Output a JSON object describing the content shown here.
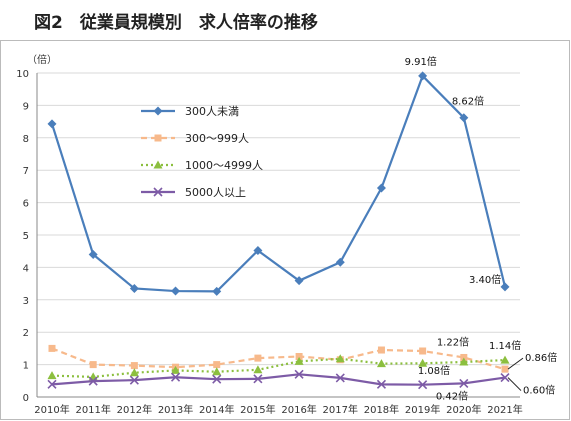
{
  "title": "図2　従業員規模別　求人倍率の推移",
  "chart_data": {
    "type": "line",
    "title": "図2　従業員規模別　求人倍率の推移",
    "y_unit_label": "（倍）",
    "ylim": [
      0,
      10
    ],
    "yticks": [
      0,
      1,
      2,
      3,
      4,
      5,
      6,
      7,
      8,
      9,
      10
    ],
    "grid": true,
    "legend_position": "top-left",
    "categories": [
      "2010年",
      "2011年",
      "2012年",
      "2013年",
      "2014年",
      "2015年",
      "2016年",
      "2017年",
      "2018年",
      "2019年",
      "2020年",
      "2021年"
    ],
    "series": [
      {
        "name": "300人未満",
        "color": "#4a7ebb",
        "marker": "diamond",
        "dash": "solid",
        "values": [
          8.43,
          4.4,
          3.35,
          3.27,
          3.26,
          4.52,
          3.59,
          4.16,
          6.45,
          9.91,
          8.62,
          3.4
        ]
      },
      {
        "name": "300～999人",
        "color": "#f7b98b",
        "marker": "square",
        "dash": "dashed",
        "values": [
          1.5,
          1.0,
          0.97,
          0.92,
          1.0,
          1.2,
          1.25,
          1.15,
          1.45,
          1.42,
          1.22,
          0.86
        ]
      },
      {
        "name": "1000～4999人",
        "color": "#8cbf3f",
        "marker": "triangle",
        "dash": "dotted",
        "values": [
          0.66,
          0.62,
          0.75,
          0.82,
          0.78,
          0.84,
          1.1,
          1.18,
          1.03,
          1.04,
          1.08,
          1.14
        ]
      },
      {
        "name": "5000人以上",
        "color": "#7d5ba6",
        "marker": "x",
        "dash": "solid",
        "values": [
          0.39,
          0.49,
          0.52,
          0.61,
          0.55,
          0.56,
          0.7,
          0.59,
          0.39,
          0.38,
          0.42,
          0.6
        ]
      }
    ],
    "annotations": [
      {
        "text": "9.91倍"
      },
      {
        "text": "8.62倍"
      },
      {
        "text": "3.40倍"
      },
      {
        "text": "1.22倍"
      },
      {
        "text": "1.14倍"
      },
      {
        "text": "1.08倍"
      },
      {
        "text": "0.86倍"
      },
      {
        "text": "0.42倍"
      },
      {
        "text": "0.60倍"
      }
    ]
  }
}
